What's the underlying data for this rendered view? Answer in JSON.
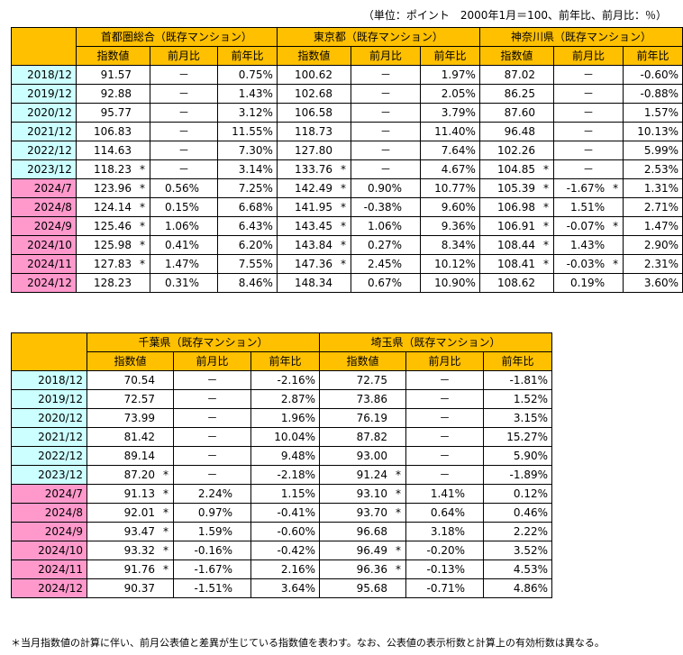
{
  "unit_note": "（単位：ポイント　2000年1月＝100、前年比、前月比：％）",
  "colors": {
    "header": "#FFC000",
    "annual_label": "#CCFFFF",
    "monthly_label": "#FF99CC",
    "border": "#000000"
  },
  "subheaders": [
    "指数値",
    "前月比",
    "前年比"
  ],
  "dates": [
    {
      "label": "2018/12",
      "kind": "y"
    },
    {
      "label": "2019/12",
      "kind": "y"
    },
    {
      "label": "2020/12",
      "kind": "y"
    },
    {
      "label": "2021/12",
      "kind": "y"
    },
    {
      "label": "2022/12",
      "kind": "y"
    },
    {
      "label": "2023/12",
      "kind": "y"
    },
    {
      "label": "2024/7",
      "kind": "m"
    },
    {
      "label": "2024/8",
      "kind": "m"
    },
    {
      "label": "2024/9",
      "kind": "m"
    },
    {
      "label": "2024/10",
      "kind": "m"
    },
    {
      "label": "2024/11",
      "kind": "m"
    },
    {
      "label": "2024/12",
      "kind": "m"
    }
  ],
  "tables": [
    {
      "regions": [
        {
          "name": "首都圏総合（既存マンション）",
          "rows": [
            {
              "idx": "91.57",
              "im": "",
              "mom": "－",
              "mm": "",
              "yoy": "0.75%"
            },
            {
              "idx": "92.88",
              "im": "",
              "mom": "－",
              "mm": "",
              "yoy": "1.43%"
            },
            {
              "idx": "95.77",
              "im": "",
              "mom": "－",
              "mm": "",
              "yoy": "3.12%"
            },
            {
              "idx": "106.83",
              "im": "",
              "mom": "－",
              "mm": "",
              "yoy": "11.55%"
            },
            {
              "idx": "114.63",
              "im": "",
              "mom": "－",
              "mm": "",
              "yoy": "7.30%"
            },
            {
              "idx": "118.23",
              "im": "*",
              "mom": "－",
              "mm": "",
              "yoy": "3.14%"
            },
            {
              "idx": "123.96",
              "im": "*",
              "mom": "0.56%",
              "mm": "",
              "yoy": "7.25%"
            },
            {
              "idx": "124.14",
              "im": "*",
              "mom": "0.15%",
              "mm": "",
              "yoy": "6.68%"
            },
            {
              "idx": "125.46",
              "im": "*",
              "mom": "1.06%",
              "mm": "",
              "yoy": "6.43%"
            },
            {
              "idx": "125.98",
              "im": "*",
              "mom": "0.41%",
              "mm": "",
              "yoy": "6.20%"
            },
            {
              "idx": "127.83",
              "im": "*",
              "mom": "1.47%",
              "mm": "",
              "yoy": "7.55%"
            },
            {
              "idx": "128.23",
              "im": "",
              "mom": "0.31%",
              "mm": "",
              "yoy": "8.46%"
            }
          ]
        },
        {
          "name": "東京都（既存マンション）",
          "rows": [
            {
              "idx": "100.62",
              "im": "",
              "mom": "－",
              "mm": "",
              "yoy": "1.97%"
            },
            {
              "idx": "102.68",
              "im": "",
              "mom": "－",
              "mm": "",
              "yoy": "2.05%"
            },
            {
              "idx": "106.58",
              "im": "",
              "mom": "－",
              "mm": "",
              "yoy": "3.79%"
            },
            {
              "idx": "118.73",
              "im": "",
              "mom": "－",
              "mm": "",
              "yoy": "11.40%"
            },
            {
              "idx": "127.80",
              "im": "",
              "mom": "－",
              "mm": "",
              "yoy": "7.64%"
            },
            {
              "idx": "133.76",
              "im": "*",
              "mom": "－",
              "mm": "",
              "yoy": "4.67%"
            },
            {
              "idx": "142.49",
              "im": "*",
              "mom": "0.90%",
              "mm": "",
              "yoy": "10.77%"
            },
            {
              "idx": "141.95",
              "im": "*",
              "mom": "-0.38%",
              "mm": "",
              "yoy": "9.60%"
            },
            {
              "idx": "143.45",
              "im": "*",
              "mom": "1.06%",
              "mm": "",
              "yoy": "9.36%"
            },
            {
              "idx": "143.84",
              "im": "*",
              "mom": "0.27%",
              "mm": "",
              "yoy": "8.34%"
            },
            {
              "idx": "147.36",
              "im": "*",
              "mom": "2.45%",
              "mm": "",
              "yoy": "10.12%"
            },
            {
              "idx": "148.34",
              "im": "",
              "mom": "0.67%",
              "mm": "",
              "yoy": "10.90%"
            }
          ]
        },
        {
          "name": "神奈川県（既存マンション）",
          "rows": [
            {
              "idx": "87.02",
              "im": "",
              "mom": "－",
              "mm": "",
              "yoy": "-0.60%"
            },
            {
              "idx": "86.25",
              "im": "",
              "mom": "－",
              "mm": "",
              "yoy": "-0.88%"
            },
            {
              "idx": "87.60",
              "im": "",
              "mom": "－",
              "mm": "",
              "yoy": "1.57%"
            },
            {
              "idx": "96.48",
              "im": "",
              "mom": "－",
              "mm": "",
              "yoy": "10.13%"
            },
            {
              "idx": "102.26",
              "im": "",
              "mom": "－",
              "mm": "",
              "yoy": "5.99%"
            },
            {
              "idx": "104.85",
              "im": "*",
              "mom": "－",
              "mm": "",
              "yoy": "2.53%"
            },
            {
              "idx": "105.39",
              "im": "*",
              "mom": "-1.67%",
              "mm": "*",
              "yoy": "1.31%"
            },
            {
              "idx": "106.98",
              "im": "*",
              "mom": "1.51%",
              "mm": "",
              "yoy": "2.71%"
            },
            {
              "idx": "106.91",
              "im": "*",
              "mom": "-0.07%",
              "mm": "*",
              "yoy": "1.47%"
            },
            {
              "idx": "108.44",
              "im": "*",
              "mom": "1.43%",
              "mm": "",
              "yoy": "2.90%"
            },
            {
              "idx": "108.41",
              "im": "*",
              "mom": "-0.03%",
              "mm": "*",
              "yoy": "2.31%"
            },
            {
              "idx": "108.62",
              "im": "",
              "mom": "0.19%",
              "mm": "",
              "yoy": "3.60%"
            }
          ]
        }
      ]
    },
    {
      "regions": [
        {
          "name": "千葉県（既存マンション）",
          "rows": [
            {
              "idx": "70.54",
              "im": "",
              "mom": "－",
              "mm": "",
              "yoy": "-2.16%"
            },
            {
              "idx": "72.57",
              "im": "",
              "mom": "－",
              "mm": "",
              "yoy": "2.87%"
            },
            {
              "idx": "73.99",
              "im": "",
              "mom": "－",
              "mm": "",
              "yoy": "1.96%"
            },
            {
              "idx": "81.42",
              "im": "",
              "mom": "－",
              "mm": "",
              "yoy": "10.04%"
            },
            {
              "idx": "89.14",
              "im": "",
              "mom": "－",
              "mm": "",
              "yoy": "9.48%"
            },
            {
              "idx": "87.20",
              "im": "*",
              "mom": "－",
              "mm": "",
              "yoy": "-2.18%"
            },
            {
              "idx": "91.13",
              "im": "*",
              "mom": "2.24%",
              "mm": "",
              "yoy": "1.15%"
            },
            {
              "idx": "92.01",
              "im": "*",
              "mom": "0.97%",
              "mm": "",
              "yoy": "-0.41%"
            },
            {
              "idx": "93.47",
              "im": "*",
              "mom": "1.59%",
              "mm": "",
              "yoy": "-0.60%"
            },
            {
              "idx": "93.32",
              "im": "*",
              "mom": "-0.16%",
              "mm": "",
              "yoy": "-0.42%"
            },
            {
              "idx": "91.76",
              "im": "*",
              "mom": "-1.67%",
              "mm": "",
              "yoy": "2.16%"
            },
            {
              "idx": "90.37",
              "im": "",
              "mom": "-1.51%",
              "mm": "",
              "yoy": "3.64%"
            }
          ]
        },
        {
          "name": "埼玉県（既存マンション）",
          "rows": [
            {
              "idx": "72.75",
              "im": "",
              "mom": "－",
              "mm": "",
              "yoy": "-1.81%"
            },
            {
              "idx": "73.86",
              "im": "",
              "mom": "－",
              "mm": "",
              "yoy": "1.52%"
            },
            {
              "idx": "76.19",
              "im": "",
              "mom": "－",
              "mm": "",
              "yoy": "3.15%"
            },
            {
              "idx": "87.82",
              "im": "",
              "mom": "－",
              "mm": "",
              "yoy": "15.27%"
            },
            {
              "idx": "93.00",
              "im": "",
              "mom": "－",
              "mm": "",
              "yoy": "5.90%"
            },
            {
              "idx": "91.24",
              "im": "*",
              "mom": "－",
              "mm": "",
              "yoy": "-1.89%"
            },
            {
              "idx": "93.10",
              "im": "*",
              "mom": "1.41%",
              "mm": "",
              "yoy": "0.12%"
            },
            {
              "idx": "93.70",
              "im": "*",
              "mom": "0.64%",
              "mm": "",
              "yoy": "0.46%"
            },
            {
              "idx": "96.68",
              "im": "",
              "mom": "3.18%",
              "mm": "",
              "yoy": "2.22%"
            },
            {
              "idx": "96.49",
              "im": "*",
              "mom": "-0.20%",
              "mm": "",
              "yoy": "3.52%"
            },
            {
              "idx": "96.36",
              "im": "*",
              "mom": "-0.13%",
              "mm": "",
              "yoy": "4.53%"
            },
            {
              "idx": "95.68",
              "im": "",
              "mom": "-0.71%",
              "mm": "",
              "yoy": "4.86%"
            }
          ]
        }
      ]
    }
  ],
  "footnote": "＊当月指数値の計算に伴い、前月公表値と差異が生じている指数値を表わす。なお、公表値の表示桁数と計算上の有効桁数は異なる。"
}
